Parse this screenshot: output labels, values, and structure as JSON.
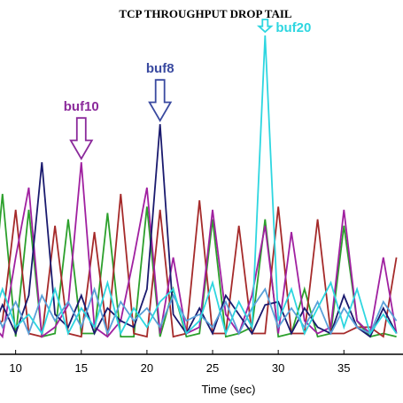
{
  "chart_data": {
    "type": "line",
    "title": "TCP THROUGHPUT DROP TAIL",
    "xlabel": "Time (sec)",
    "ylabel": "",
    "xlim": [
      8,
      39.5
    ],
    "ylim": [
      0,
      100
    ],
    "xticks": [
      10,
      15,
      20,
      25,
      30,
      35
    ],
    "grid": false,
    "series": [
      {
        "color": "#2ca02c",
        "x": [
          8,
          9,
          10,
          11,
          12,
          13,
          14,
          15,
          16,
          17,
          18,
          19,
          20,
          21,
          22,
          23,
          24,
          25,
          26,
          27,
          28,
          29,
          30,
          31,
          32,
          33,
          34,
          35,
          36,
          37,
          38,
          39
        ],
        "y": [
          5,
          50,
          5,
          45,
          5,
          6,
          42,
          6,
          6,
          44,
          5,
          5,
          46,
          5,
          20,
          5,
          6,
          42,
          5,
          6,
          8,
          42,
          5,
          6,
          20,
          5,
          6,
          40,
          10,
          5,
          6,
          5
        ]
      },
      {
        "color": "#a52a2a",
        "x": [
          8,
          9,
          10,
          11,
          12,
          13,
          14,
          15,
          16,
          17,
          18,
          19,
          20,
          21,
          22,
          23,
          24,
          25,
          26,
          27,
          28,
          29,
          30,
          31,
          32,
          33,
          34,
          35,
          36,
          37,
          38,
          39
        ],
        "y": [
          6,
          10,
          45,
          6,
          5,
          40,
          6,
          5,
          38,
          5,
          50,
          6,
          5,
          45,
          5,
          6,
          48,
          6,
          6,
          40,
          6,
          6,
          46,
          6,
          6,
          42,
          6,
          6,
          8,
          8,
          5,
          30
        ]
      },
      {
        "color": "#a020a0",
        "x": [
          8,
          9,
          10,
          11,
          12,
          13,
          14,
          15,
          16,
          17,
          18,
          19,
          20,
          21,
          22,
          23,
          24,
          25,
          26,
          27,
          28,
          29,
          30,
          31,
          32,
          33,
          34,
          35,
          36,
          37,
          38,
          39
        ],
        "y": [
          10,
          5,
          30,
          52,
          5,
          8,
          15,
          60,
          8,
          5,
          10,
          30,
          52,
          6,
          30,
          6,
          8,
          45,
          12,
          6,
          18,
          40,
          6,
          38,
          10,
          6,
          8,
          45,
          10,
          6,
          30,
          6
        ]
      },
      {
        "color": "#1a1a6e",
        "x": [
          8,
          9,
          10,
          11,
          12,
          13,
          14,
          15,
          16,
          17,
          18,
          19,
          20,
          21,
          22,
          23,
          24,
          25,
          26,
          27,
          28,
          29,
          30,
          31,
          32,
          33,
          34,
          35,
          36,
          37,
          38,
          39
        ],
        "y": [
          5,
          15,
          6,
          18,
          60,
          12,
          8,
          18,
          6,
          14,
          10,
          8,
          20,
          72,
          12,
          6,
          14,
          6,
          18,
          12,
          6,
          15,
          16,
          6,
          14,
          8,
          6,
          18,
          8,
          5,
          14,
          6
        ]
      },
      {
        "color": "#5aa0d8",
        "x": [
          8,
          9,
          10,
          11,
          12,
          13,
          14,
          15,
          16,
          17,
          18,
          19,
          20,
          21,
          22,
          23,
          24,
          25,
          26,
          27,
          28,
          29,
          30,
          31,
          32,
          33,
          34,
          35,
          36,
          37,
          38,
          39
        ],
        "y": [
          18,
          8,
          16,
          6,
          18,
          10,
          16,
          8,
          20,
          6,
          16,
          10,
          14,
          8,
          18,
          10,
          12,
          8,
          16,
          6,
          14,
          20,
          8,
          14,
          8,
          16,
          6,
          14,
          8,
          6,
          16,
          10
        ]
      },
      {
        "color": "#2ed6e0",
        "x": [
          8,
          9,
          10,
          11,
          12,
          13,
          14,
          15,
          16,
          17,
          18,
          19,
          20,
          21,
          22,
          23,
          24,
          25,
          26,
          27,
          28,
          29,
          30,
          31,
          32,
          33,
          34,
          35,
          36,
          37,
          38,
          39
        ],
        "y": [
          8,
          20,
          8,
          12,
          6,
          20,
          6,
          14,
          8,
          22,
          6,
          14,
          8,
          16,
          20,
          6,
          10,
          22,
          6,
          16,
          8,
          100,
          10,
          20,
          6,
          14,
          22,
          8,
          20,
          6,
          12,
          6
        ]
      }
    ],
    "annotations": [
      {
        "text": "buf10",
        "color": "#8b2a9b",
        "x": 15.0,
        "y": 60
      },
      {
        "text": "buf8",
        "color": "#3a4aa0",
        "x": 21.0,
        "y": 72
      },
      {
        "text": "buf20",
        "color": "#2ed6e0",
        "x": 29.0,
        "y": 100
      }
    ]
  }
}
